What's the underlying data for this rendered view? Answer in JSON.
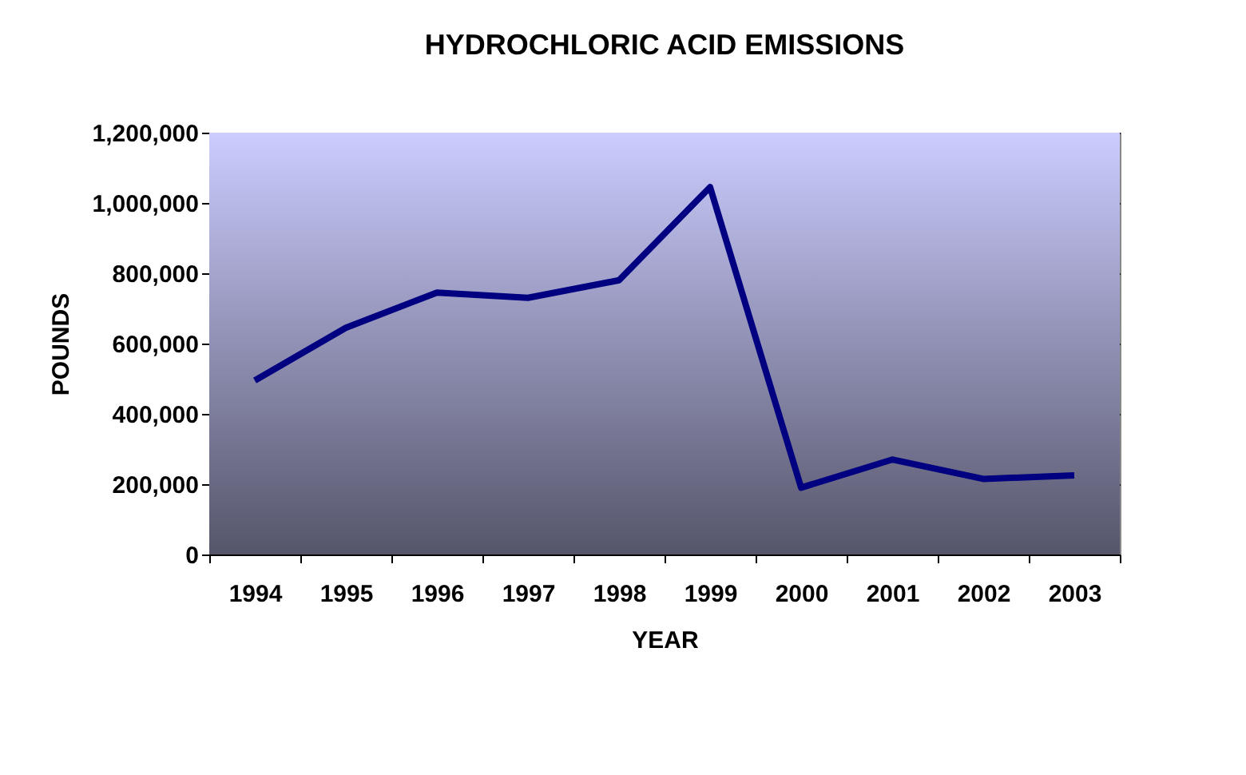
{
  "chart_data": {
    "type": "line",
    "title": "HYDROCHLORIC ACID EMISSIONS",
    "xlabel": "YEAR",
    "ylabel": "POUNDS",
    "categories": [
      "1994",
      "1995",
      "1996",
      "1997",
      "1998",
      "1999",
      "2000",
      "2001",
      "2002",
      "2003"
    ],
    "series": [
      {
        "color": "#000080",
        "values": [
          495000,
          645000,
          745000,
          730000,
          780000,
          1045000,
          190000,
          270000,
          215000,
          225000
        ]
      }
    ],
    "ylim": [
      0,
      1200000
    ],
    "yticks": [
      0,
      {
        "value": 200000,
        "label": "200,000"
      },
      {
        "value": 400000,
        "label": "400,000"
      },
      {
        "value": 600000,
        "label": "600,000"
      },
      {
        "value": 800000,
        "label": "800,000"
      },
      {
        "value": 1000000,
        "label": "1,000,000"
      },
      {
        "value": 1200000,
        "label": "1,200,000"
      }
    ],
    "grid": "y",
    "marker": "none",
    "line_style": "solid"
  }
}
